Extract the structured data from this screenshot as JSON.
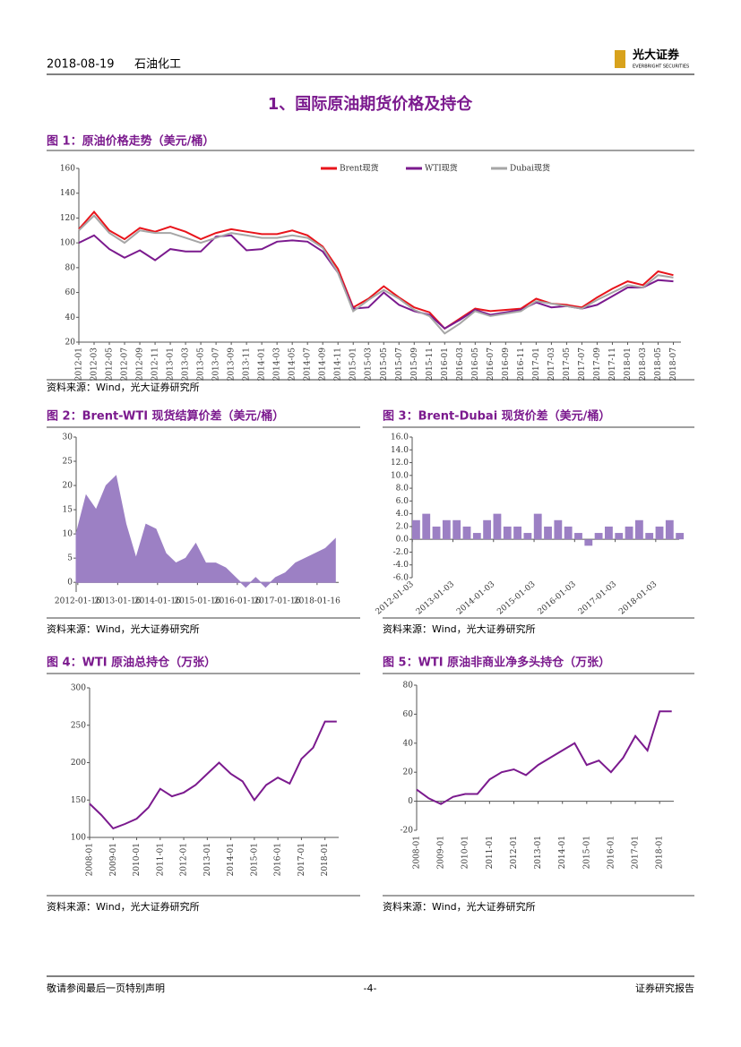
{
  "header": {
    "date": "2018-08-19",
    "sector": "石油化工",
    "logo": "光大证券",
    "logo_en": "EVERBRIGHT SECURITIES"
  },
  "heading": "1、国际原油期货价格及持仓",
  "chart_data": [
    {
      "type": "line",
      "title": "图 1：原油价格走势（美元/桶）",
      "source": "资料来源：Wind，光大证券研究所",
      "x": [
        "2012-01",
        "2012-03",
        "2012-05",
        "2012-07",
        "2012-09",
        "2012-11",
        "2013-01",
        "2013-03",
        "2013-05",
        "2013-07",
        "2013-09",
        "2013-11",
        "2014-01",
        "2014-03",
        "2014-05",
        "2014-07",
        "2014-09",
        "2014-11",
        "2015-01",
        "2015-03",
        "2015-05",
        "2015-07",
        "2015-09",
        "2015-11",
        "2016-01",
        "2016-03",
        "2016-05",
        "2016-07",
        "2016-09",
        "2016-11",
        "2017-01",
        "2017-03",
        "2017-05",
        "2017-07",
        "2017-09",
        "2017-11",
        "2018-01",
        "2018-03",
        "2018-05",
        "2018-07"
      ],
      "xlim": [
        "2012-01",
        "2018-08"
      ],
      "xticks": [
        "2012-01",
        "2012-03",
        "2012-05",
        "2012-07",
        "2012-09",
        "2012-11",
        "2013-01",
        "2013-03",
        "2013-05",
        "2013-07",
        "2013-09",
        "2013-11",
        "2014-01",
        "2014-03",
        "2014-05",
        "2014-07",
        "2014-09",
        "2014-11",
        "2015-01",
        "2015-03",
        "2015-05",
        "2015-07",
        "2015-09",
        "2015-11",
        "2016-01",
        "2016-03",
        "2016-05",
        "2016-07",
        "2016-09",
        "2016-11",
        "2017-01",
        "2017-03",
        "2017-05",
        "2017-07",
        "2017-09",
        "2017-11",
        "2018-01",
        "2018-03",
        "2018-05",
        "2018-07"
      ],
      "ylim": [
        20,
        160
      ],
      "yticks": [
        20,
        40,
        60,
        80,
        100,
        120,
        140,
        160
      ],
      "series": [
        {
          "name": "Brent现货",
          "color": "#e8141b",
          "values": [
            111,
            125,
            110,
            103,
            112,
            109,
            113,
            109,
            103,
            108,
            111,
            109,
            107,
            107,
            110,
            106,
            97,
            79,
            48,
            55,
            65,
            56,
            48,
            44,
            31,
            39,
            47,
            45,
            46,
            47,
            55,
            51,
            50,
            48,
            56,
            63,
            69,
            66,
            77,
            74
          ]
        },
        {
          "name": "WTI现货",
          "color": "#7b1a8e",
          "values": [
            100,
            106,
            95,
            88,
            94,
            86,
            95,
            93,
            93,
            105,
            106,
            94,
            95,
            101,
            102,
            101,
            93,
            76,
            47,
            48,
            60,
            50,
            45,
            42,
            31,
            38,
            46,
            42,
            44,
            46,
            52,
            48,
            49,
            47,
            50,
            57,
            64,
            64,
            70,
            69
          ]
        },
        {
          "name": "Dubai现货",
          "color": "#a6a6a6",
          "values": [
            110,
            122,
            108,
            100,
            110,
            108,
            108,
            104,
            100,
            104,
            108,
            106,
            104,
            104,
            106,
            104,
            96,
            76,
            45,
            54,
            62,
            55,
            46,
            41,
            27,
            35,
            45,
            41,
            43,
            45,
            53,
            51,
            49,
            47,
            54,
            60,
            66,
            64,
            74,
            72
          ]
        }
      ]
    },
    {
      "type": "area",
      "title": "图 2：Brent-WTI 现货结算价差（美元/桶）",
      "source": "资料来源：Wind，光大证券研究所",
      "color": "#9c80c4",
      "x": [
        "2012-01",
        "2012-04",
        "2012-07",
        "2012-10",
        "2013-01",
        "2013-04",
        "2013-07",
        "2013-10",
        "2014-01",
        "2014-04",
        "2014-07",
        "2014-10",
        "2015-01",
        "2015-04",
        "2015-07",
        "2015-10",
        "2016-01",
        "2016-04",
        "2016-07",
        "2016-10",
        "2017-01",
        "2017-04",
        "2017-07",
        "2017-10",
        "2018-01",
        "2018-04",
        "2018-07"
      ],
      "values": [
        10,
        18,
        15,
        20,
        22,
        12,
        5,
        12,
        11,
        6,
        4,
        5,
        8,
        4,
        4,
        3,
        1,
        -1,
        1,
        -1,
        1,
        2,
        4,
        5,
        6,
        7,
        9
      ],
      "xlim": [
        "2012-01",
        "2018-08"
      ],
      "xticks": [
        "2012-01-16",
        "2013-01-16",
        "2014-01-16",
        "2015-01-16",
        "2016-01-16",
        "2017-01-16",
        "2018-01-16"
      ],
      "ylim": [
        -2,
        30
      ],
      "yticks": [
        0,
        5,
        10,
        15,
        20,
        25,
        30
      ]
    },
    {
      "type": "bar",
      "title": "图 3：Brent-Dubai 现货价差（美元/桶）",
      "source": "资料来源：Wind，光大证券研究所",
      "color": "#9c80c4",
      "x": [
        "2012-01",
        "2012-04",
        "2012-07",
        "2012-10",
        "2013-01",
        "2013-04",
        "2013-07",
        "2013-10",
        "2014-01",
        "2014-04",
        "2014-07",
        "2014-10",
        "2015-01",
        "2015-04",
        "2015-07",
        "2015-10",
        "2016-01",
        "2016-04",
        "2016-07",
        "2016-10",
        "2017-01",
        "2017-04",
        "2017-07",
        "2017-10",
        "2018-01",
        "2018-04",
        "2018-07"
      ],
      "values": [
        3,
        4,
        2,
        3,
        3,
        2,
        1,
        3,
        4,
        2,
        2,
        1,
        4,
        2,
        3,
        2,
        1,
        -1,
        1,
        2,
        1,
        2,
        3,
        1,
        2,
        3,
        1
      ],
      "xlim": [
        "2012-01",
        "2018-08"
      ],
      "xticks": [
        "2012-01-03",
        "2013-01-03",
        "2014-01-03",
        "2015-01-03",
        "2016-01-03",
        "2017-01-03",
        "2018-01-03"
      ],
      "ylim": [
        -6,
        16
      ],
      "yticks": [
        {
          "value": -6,
          "label": "-6.0"
        },
        {
          "value": -4,
          "label": "-4.0"
        },
        {
          "value": -2,
          "label": "-2.0"
        },
        {
          "value": 0,
          "label": "0.0"
        },
        {
          "value": 2,
          "label": "2.0"
        },
        {
          "value": 4,
          "label": "4.0"
        },
        {
          "value": 6,
          "label": "6.0"
        },
        {
          "value": 8,
          "label": "8.0"
        },
        {
          "value": 10,
          "label": "10.0"
        },
        {
          "value": 12,
          "label": "12.0"
        },
        {
          "value": 14,
          "label": "14.0"
        },
        {
          "value": 16,
          "label": "16.0"
        }
      ]
    },
    {
      "type": "line",
      "title": "图 4：WTI 原油总持仓（万张）",
      "source": "资料来源：Wind，光大证券研究所",
      "color": "#7b1a8e",
      "x": [
        "2008-01",
        "2008-07",
        "2009-01",
        "2009-07",
        "2010-01",
        "2010-07",
        "2011-01",
        "2011-07",
        "2012-01",
        "2012-07",
        "2013-01",
        "2013-07",
        "2014-01",
        "2014-07",
        "2015-01",
        "2015-07",
        "2016-01",
        "2016-07",
        "2017-01",
        "2017-07",
        "2018-01",
        "2018-07"
      ],
      "values": [
        145,
        130,
        112,
        118,
        125,
        140,
        165,
        155,
        160,
        170,
        185,
        200,
        185,
        175,
        150,
        170,
        180,
        172,
        205,
        220,
        255,
        255
      ],
      "xlim": [
        "2008-01",
        "2018-08"
      ],
      "xticks": [
        "2008-01",
        "2009-01",
        "2010-01",
        "2011-01",
        "2012-01",
        "2013-01",
        "2014-01",
        "2015-01",
        "2016-01",
        "2017-01",
        "2018-01"
      ],
      "ylim": [
        100,
        300
      ],
      "yticks": [
        100,
        150,
        200,
        250,
        300
      ]
    },
    {
      "type": "line",
      "title": "图 5：WTI 原油非商业净多头持仓（万张）",
      "source": "资料来源：Wind，光大证券研究所",
      "color": "#7b1a8e",
      "x": [
        "2008-01",
        "2008-07",
        "2009-01",
        "2009-07",
        "2010-01",
        "2010-07",
        "2011-01",
        "2011-07",
        "2012-01",
        "2012-07",
        "2013-01",
        "2013-07",
        "2014-01",
        "2014-07",
        "2015-01",
        "2015-07",
        "2016-01",
        "2016-07",
        "2017-01",
        "2017-07",
        "2018-01",
        "2018-07"
      ],
      "values": [
        8,
        2,
        -2,
        3,
        5,
        5,
        15,
        20,
        22,
        18,
        25,
        30,
        35,
        40,
        25,
        28,
        20,
        30,
        45,
        35,
        62,
        62
      ],
      "xlim": [
        "2008-01",
        "2018-08"
      ],
      "xticks": [
        "2008-01",
        "2009-01",
        "2010-01",
        "2011-01",
        "2012-01",
        "2013-01",
        "2014-01",
        "2015-01",
        "2016-01",
        "2017-01",
        "2018-01"
      ],
      "ylim": [
        -20,
        80
      ],
      "yticks": [
        -20,
        0,
        20,
        40,
        60,
        80
      ]
    }
  ],
  "footer": {
    "left": "敬请参阅最后一页特别声明",
    "center": "-4-",
    "right": "证券研究报告"
  }
}
